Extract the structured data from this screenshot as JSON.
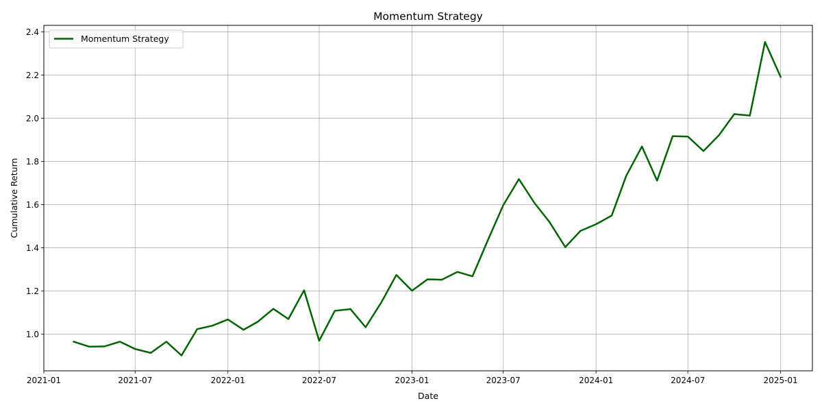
{
  "chart_data": {
    "type": "line",
    "title": "Momentum Strategy",
    "xlabel": "Date",
    "ylabel": "Cumulative Return",
    "grid": true,
    "legend_position": "top-left",
    "xlim": [
      "2021-01-01",
      "2025-03-05"
    ],
    "ylim": [
      0.83,
      2.43
    ],
    "x_ticks": [
      "2021-01",
      "2021-07",
      "2022-01",
      "2022-07",
      "2023-01",
      "2023-07",
      "2024-01",
      "2024-07",
      "2025-01"
    ],
    "y_ticks": [
      "1.0",
      "1.2",
      "1.4",
      "1.6",
      "1.8",
      "2.0",
      "2.2",
      "2.4"
    ],
    "series": [
      {
        "name": "Momentum Strategy",
        "color": "#006400",
        "x": [
          "2021-03-01",
          "2021-04-01",
          "2021-05-01",
          "2021-06-01",
          "2021-07-01",
          "2021-08-01",
          "2021-09-01",
          "2021-10-01",
          "2021-11-01",
          "2021-12-01",
          "2022-01-01",
          "2022-02-01",
          "2022-03-01",
          "2022-04-01",
          "2022-05-01",
          "2022-06-01",
          "2022-07-01",
          "2022-08-01",
          "2022-09-01",
          "2022-10-01",
          "2022-11-01",
          "2022-12-01",
          "2023-01-01",
          "2023-02-01",
          "2023-03-01",
          "2023-04-01",
          "2023-05-01",
          "2023-06-01",
          "2023-07-01",
          "2023-08-01",
          "2023-09-01",
          "2023-10-01",
          "2023-11-01",
          "2023-12-01",
          "2024-01-01",
          "2024-02-01",
          "2024-03-01",
          "2024-04-01",
          "2024-05-01",
          "2024-06-01",
          "2024-07-01",
          "2024-08-01",
          "2024-09-01",
          "2024-10-01",
          "2024-11-01",
          "2024-12-01",
          "2025-01-01"
        ],
        "values": [
          0.965,
          0.942,
          0.943,
          0.965,
          0.931,
          0.913,
          0.965,
          0.901,
          1.023,
          1.039,
          1.068,
          1.02,
          1.057,
          1.117,
          1.07,
          1.203,
          0.969,
          1.108,
          1.116,
          1.032,
          1.146,
          1.274,
          1.201,
          1.254,
          1.252,
          1.288,
          1.268,
          1.438,
          1.597,
          1.718,
          1.607,
          1.518,
          1.403,
          1.478,
          1.509,
          1.549,
          1.734,
          1.869,
          1.711,
          1.917,
          1.915,
          1.848,
          1.922,
          2.019,
          2.012,
          2.353,
          2.191
        ]
      }
    ]
  }
}
